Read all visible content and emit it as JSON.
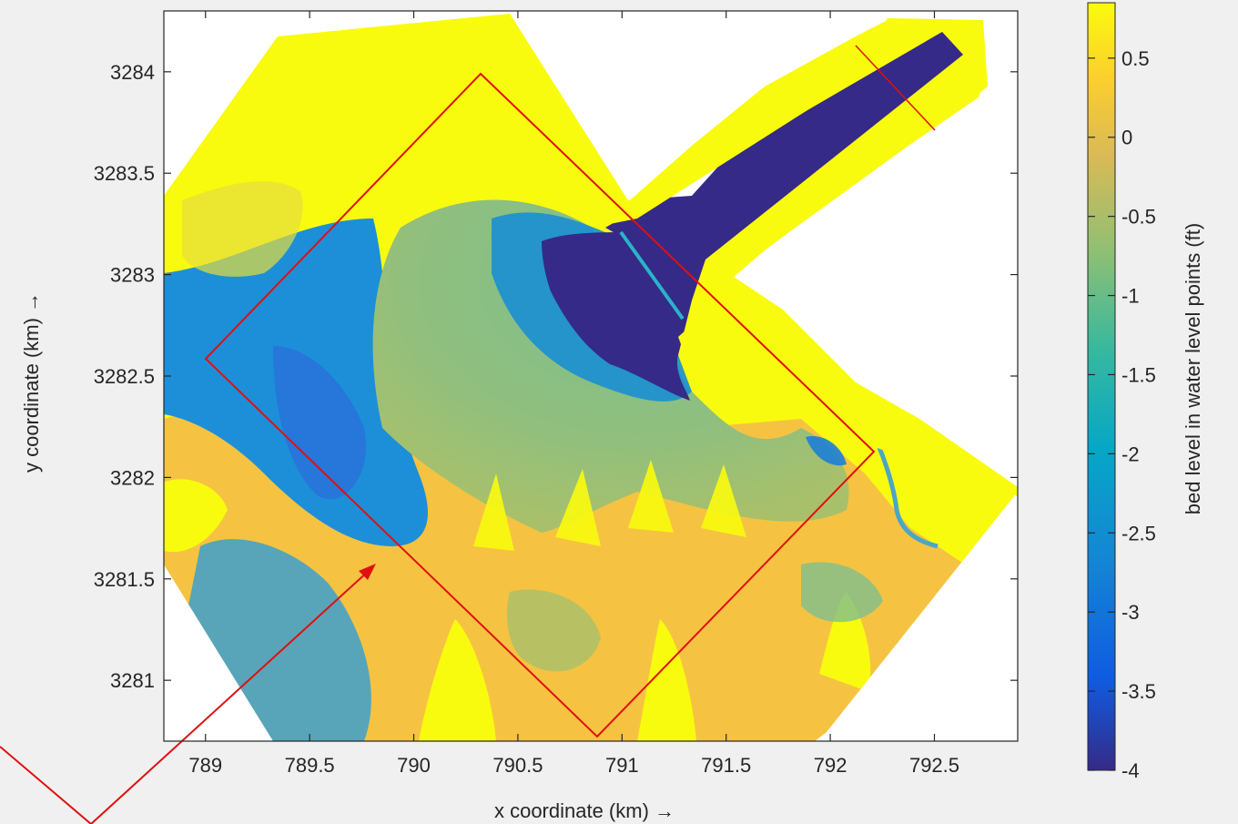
{
  "chart_data": {
    "type": "heatmap",
    "title": "",
    "xlabel": "x coordinate (km) →",
    "ylabel": "y coordinate (km) →",
    "colorbar_label": "bed level in water level points (ft)",
    "xlim": [
      788.8,
      792.9
    ],
    "ylim": [
      3280.7,
      3284.3
    ],
    "x_ticks": [
      "789",
      "789.5",
      "790",
      "790.5",
      "791",
      "791.5",
      "792",
      "792.5"
    ],
    "y_ticks": [
      "3281",
      "3281.5",
      "3282",
      "3282.5",
      "3283",
      "3283.5",
      "3284"
    ],
    "colorbar_range": [
      -4,
      0.85
    ],
    "colorbar_ticks": [
      "0.5",
      "0",
      "-0.5",
      "-1",
      "-1.5",
      "-2",
      "-2.5",
      "-3",
      "-3.5",
      "-4"
    ],
    "colormap": "parula",
    "colors": {
      "deep": "#352a87",
      "blue": "#1f6fd6",
      "teal": "#1aa9c3",
      "green": "#6cbf86",
      "orange": "#f8ba3d",
      "yellow": "#f9fb0e",
      "annotation": "#e01010"
    },
    "annotations": [
      {
        "type": "rectangle",
        "corners": [
          [
            789.0,
            3282.55
          ],
          [
            790.3,
            3283.95
          ],
          [
            792.2,
            3282.1
          ],
          [
            790.8,
            3280.55
          ]
        ]
      },
      {
        "type": "arrow",
        "from": [
          788.6,
          3280.3
        ],
        "to": [
          789.75,
          3281.55
        ]
      },
      {
        "type": "line",
        "from": [
          792.2,
          3284.1
        ],
        "to": [
          792.6,
          3283.7
        ]
      }
    ]
  }
}
